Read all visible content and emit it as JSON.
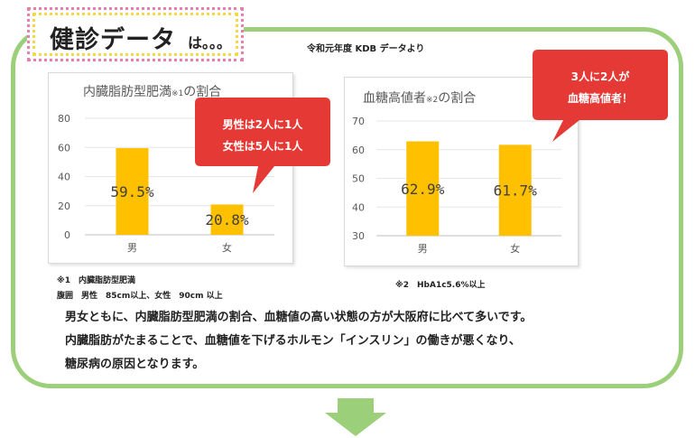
{
  "header": {
    "title": "健診データ",
    "suffix": "は。。。"
  },
  "source_note": "令和元年度 KDB データより",
  "chart_data": [
    {
      "type": "bar",
      "title": "内臓脂肪型肥満",
      "title_note": "※1",
      "title_suffix": "の割合",
      "categories": [
        "男",
        "女"
      ],
      "values": [
        59.5,
        20.8
      ],
      "data_labels": [
        "59.5%",
        "20.8%"
      ],
      "ylim": [
        0,
        80
      ],
      "yticks": [
        "0",
        "20",
        "40",
        "60",
        "80"
      ],
      "bar_color": "#ffc000",
      "grid": true
    },
    {
      "type": "bar",
      "title": "血糖高値者",
      "title_note": "※2",
      "title_suffix": "の割合",
      "categories": [
        "男",
        "女"
      ],
      "values": [
        62.9,
        61.7
      ],
      "data_labels": [
        "62.9%",
        "61.7%"
      ],
      "ylim": [
        30,
        70
      ],
      "yticks": [
        "30",
        "40",
        "50",
        "60",
        "70"
      ],
      "bar_color": "#ffc000",
      "grid": true
    }
  ],
  "callouts": {
    "obesity": {
      "line1": "男性は2人に1人",
      "line2": "女性は5人に1人",
      "color": "#e53935"
    },
    "glucose": {
      "line1": "3人に2人が",
      "line2": "血糖高値者！",
      "color": "#e53935"
    }
  },
  "footnotes": {
    "note1_title": "※1　内臓脂肪型肥満",
    "note1_detail": "腹囲　男性　85cm以上、女性　90cm 以上",
    "note2": "※2　HbA1c5.6%以上"
  },
  "body_text": {
    "line1": "男女ともに、内臓脂肪型肥満の割合、血糖値の高い状態の方が大阪府に比べて多いです。",
    "line2": "内臓脂肪がたまることで、血糖値を下げるホルモン「インスリン」の働きが悪くなり、",
    "line3": "糖尿病の原因となります。"
  },
  "colors": {
    "frame": "#9ccf7a",
    "arrow": "#9ccf7a",
    "accent": "#e53935",
    "bar": "#ffc000"
  }
}
